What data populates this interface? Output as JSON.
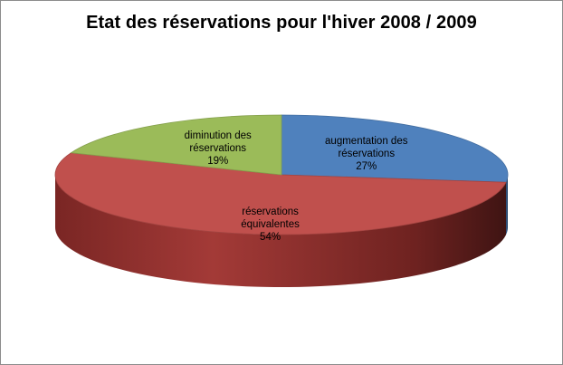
{
  "chart_data": {
    "type": "pie",
    "title": "Etat des réservations pour l'hiver 2008 / 2009",
    "slices": [
      {
        "name": "augmentation des réservations",
        "value": 27,
        "percent_label": "27%",
        "label_lines": [
          "augmentation des",
          "réservations"
        ],
        "color": "#4f81bd"
      },
      {
        "name": "réservations équivalentes",
        "value": 54,
        "percent_label": "54%",
        "label_lines": [
          "réservations",
          "équivalentes"
        ],
        "color": "#c0504d"
      },
      {
        "name": "diminution des réservations",
        "value": 19,
        "percent_label": "19%",
        "label_lines": [
          "diminution des",
          "réservations"
        ],
        "color": "#9bbb59"
      }
    ],
    "style": "3d-exploded-perspective",
    "legend": "none"
  }
}
